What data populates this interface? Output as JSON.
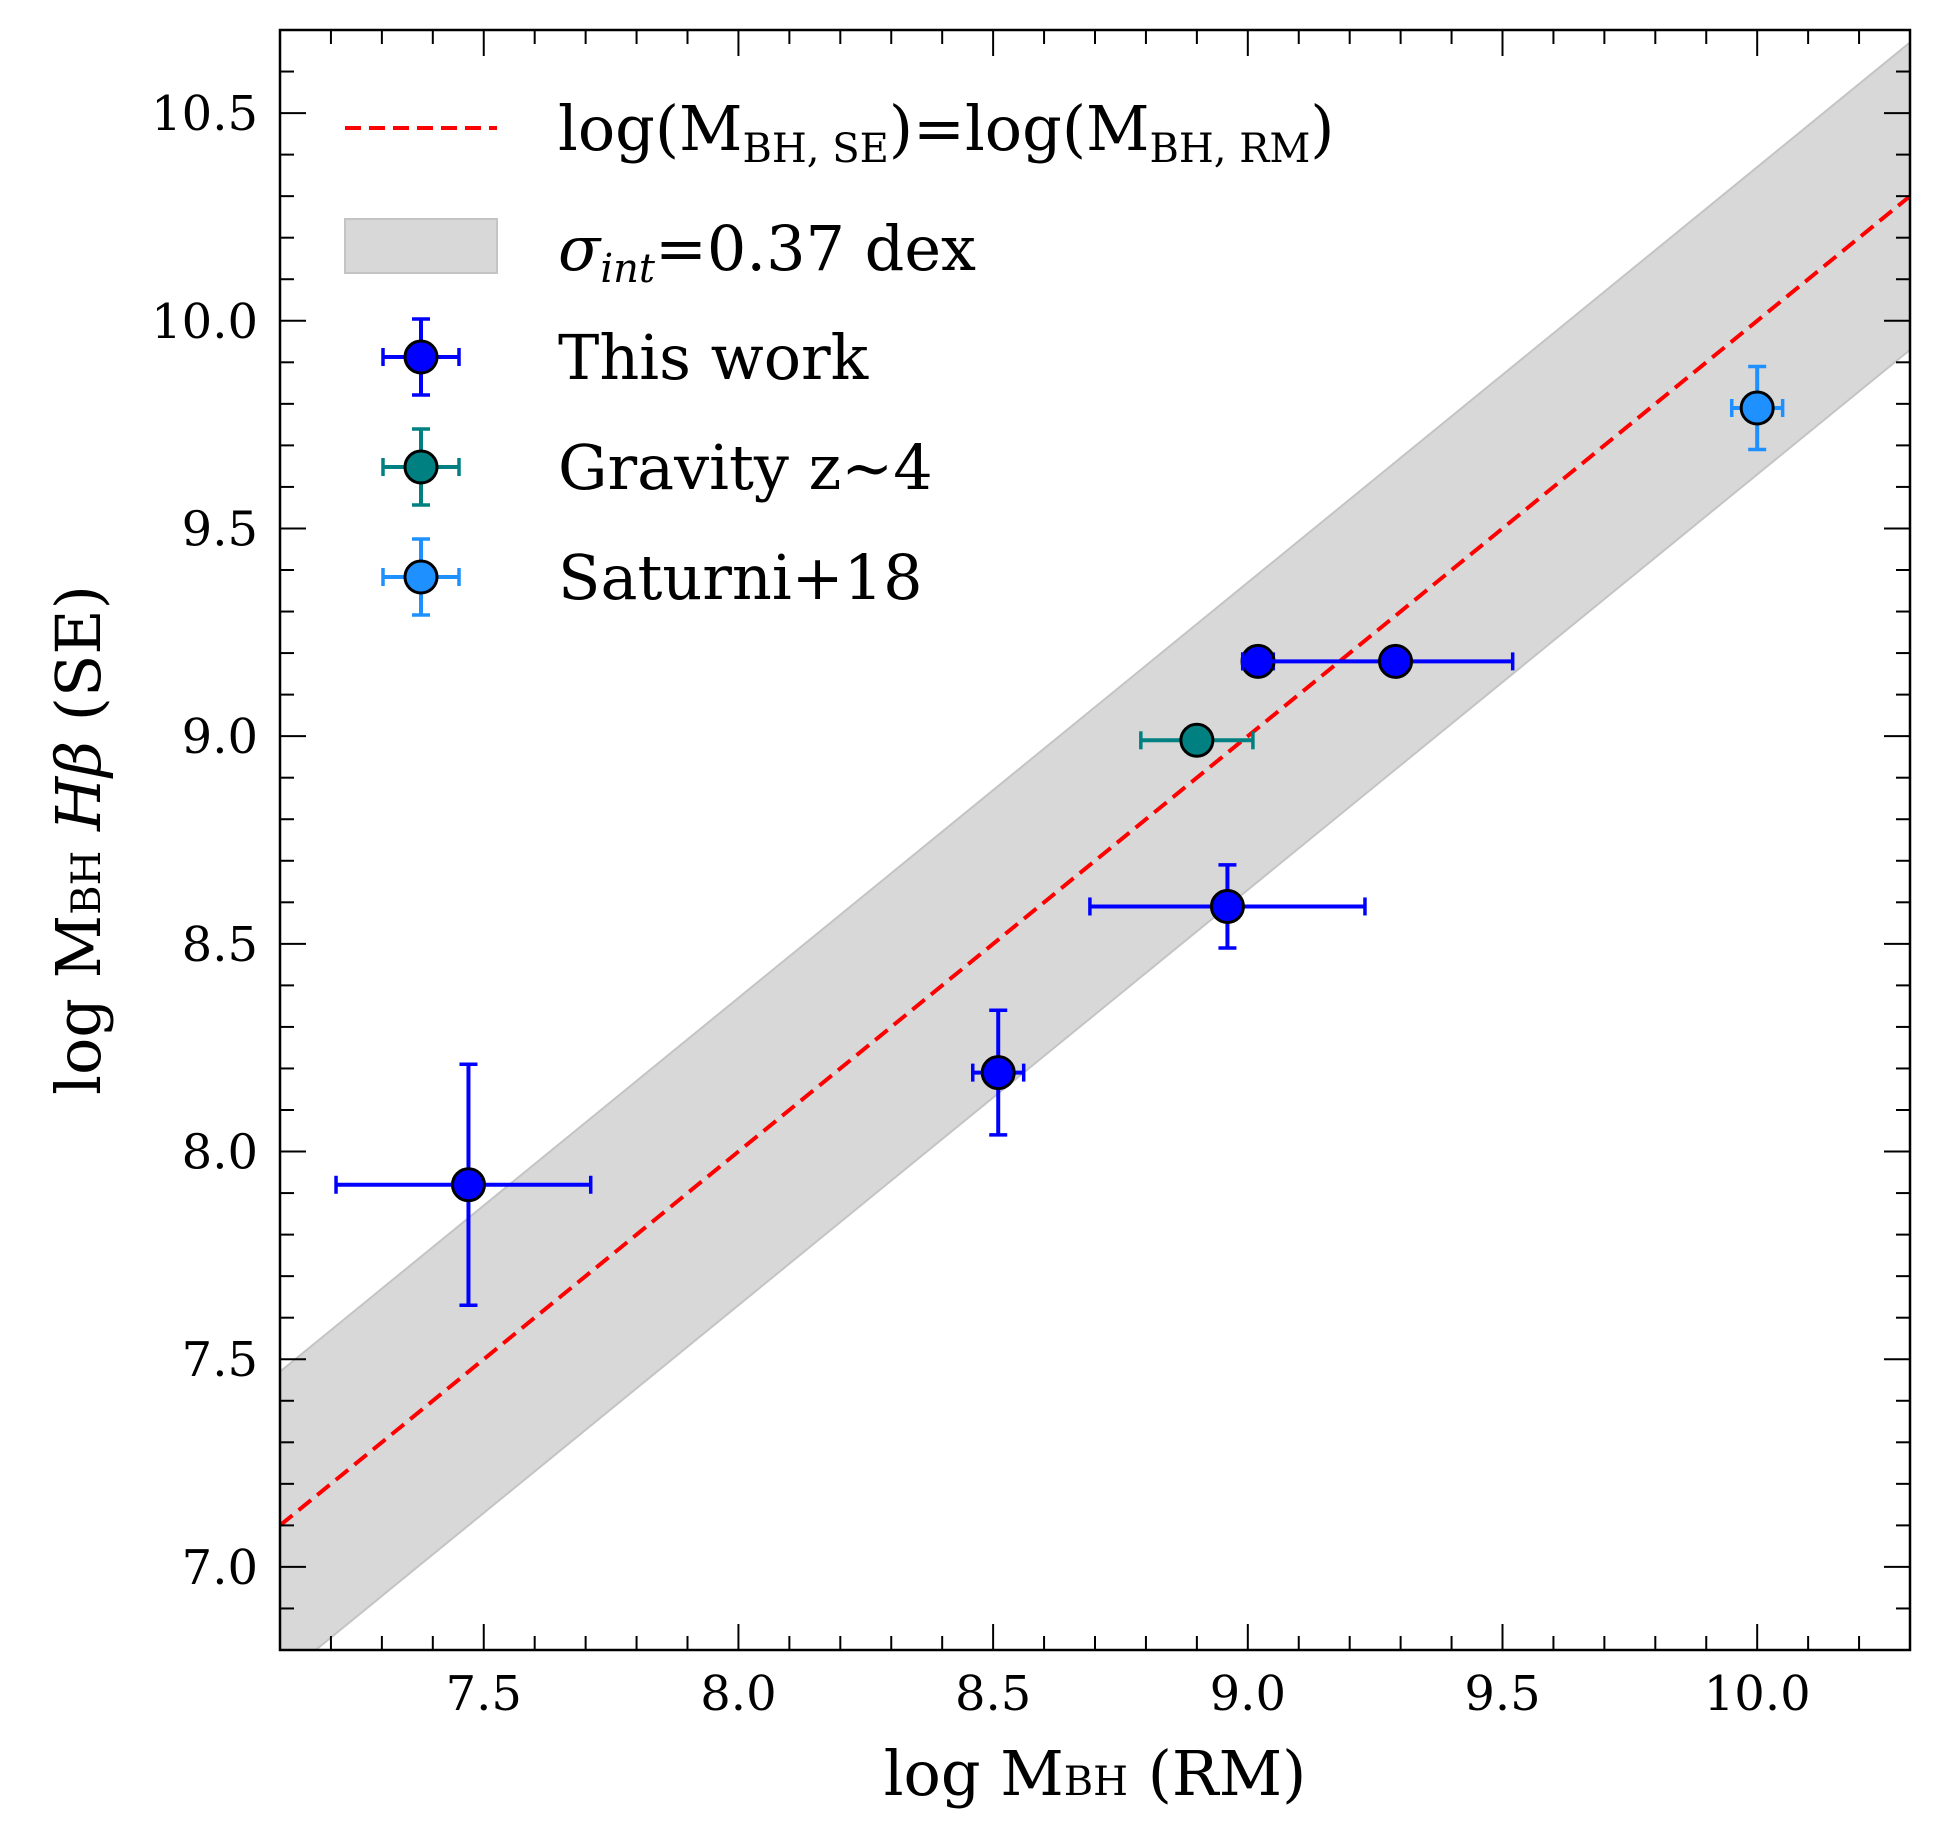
{
  "chart_data": {
    "type": "scatter",
    "xlabel": {
      "prefix": "log M",
      "sub": "BH",
      "suffix": " (RM)"
    },
    "ylabel": {
      "prefix": "log M",
      "sub": "BH",
      "mid": " ",
      "italic": "Hβ",
      "suffix": " (SE)"
    },
    "xlim": [
      7.1,
      10.3
    ],
    "ylim": [
      6.8,
      10.7
    ],
    "xticks": [
      "7.5",
      "8.0",
      "8.5",
      "9.0",
      "9.5",
      "10.0"
    ],
    "yticks": [
      "7.0",
      "7.5",
      "8.0",
      "8.5",
      "9.0",
      "9.5",
      "10.0",
      "10.5"
    ],
    "one_to_one": {
      "color": "#ff0000",
      "style": "dashed"
    },
    "scatter_band": {
      "dex": 0.37,
      "color": "#d8d8d8"
    },
    "legend": {
      "placement": "top-left",
      "line": {
        "lhs_pre": "log(M",
        "lhs_sub": "BH, SE",
        "mid": ")=log(M",
        "rhs_sub": "BH, RM",
        "end": ")"
      },
      "band": {
        "sym": "σ",
        "sym_sub": "int",
        "rest": "=0.37 dex"
      }
    },
    "series": [
      {
        "name": "This work",
        "color": "#0000ff",
        "marker_color": "#0000ff",
        "points": [
          {
            "x": 7.47,
            "y": 7.92,
            "xerr": [
              0.26,
              0.24
            ],
            "yerr": [
              0.29,
              0.29
            ]
          },
          {
            "x": 8.51,
            "y": 8.19,
            "xerr": [
              0.05,
              0.05
            ],
            "yerr": [
              0.15,
              0.15
            ]
          },
          {
            "x": 8.96,
            "y": 8.59,
            "xerr": [
              0.27,
              0.27
            ],
            "yerr": [
              0.1,
              0.1
            ]
          },
          {
            "x": 9.02,
            "y": 9.18,
            "xerr": [
              0.03,
              0.03
            ],
            "yerr": [
              0.0,
              0.0
            ]
          },
          {
            "x": 9.29,
            "y": 9.18,
            "xerr": [
              0.3,
              0.23
            ],
            "yerr": [
              0.0,
              0.0
            ]
          }
        ]
      },
      {
        "name": "Gravity z~4",
        "color": "#008080",
        "marker_color": "#008080",
        "points": [
          {
            "x": 8.9,
            "y": 8.99,
            "xerr": [
              0.11,
              0.11
            ],
            "yerr": [
              0.0,
              0.0
            ]
          }
        ]
      },
      {
        "name": "Saturni+18",
        "color": "#1e90ff",
        "marker_color": "#1e90ff",
        "points": [
          {
            "x": 10.0,
            "y": 9.79,
            "xerr": [
              0.05,
              0.05
            ],
            "yerr": [
              0.1,
              0.1
            ]
          }
        ]
      }
    ]
  }
}
